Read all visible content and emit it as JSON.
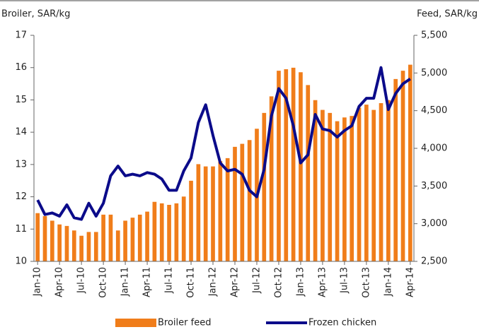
{
  "chart_data": {
    "type": "bar-line",
    "y_label": "Broiler, SAR/kg",
    "y2_label": "Feed, SAR/kg",
    "categories": [
      "Jan-10",
      null,
      null,
      "Apr-10",
      null,
      null,
      "Jul-10",
      null,
      null,
      "Oct-10",
      null,
      null,
      "Jan-11",
      null,
      null,
      "Apr-11",
      null,
      null,
      "Jul-11",
      null,
      null,
      "Oct-11",
      null,
      null,
      "Jan-12",
      null,
      null,
      "Apr-12",
      null,
      null,
      "Jul-12",
      null,
      null,
      "Oct-12",
      null,
      null,
      "Jan-13",
      null,
      null,
      "Apr-13",
      null,
      null,
      "Jul-13",
      null,
      null,
      "Oct-13",
      null,
      null,
      "Jan-14",
      null,
      null,
      "Apr-14"
    ],
    "series": [
      {
        "name": "Broiler feed",
        "type": "bar",
        "axis": "y2",
        "color": "#f07d1a",
        "values": [
          3140,
          3100,
          3040,
          2990,
          2970,
          2910,
          2840,
          2890,
          2890,
          3120,
          3120,
          2910,
          3040,
          3080,
          3120,
          3160,
          3290,
          3270,
          3250,
          3270,
          3360,
          3570,
          3790,
          3760,
          3760,
          3830,
          3870,
          4020,
          4060,
          4110,
          4260,
          4470,
          4690,
          5030,
          5050,
          5070,
          5010,
          4840,
          4640,
          4510,
          4470,
          4360,
          4410,
          4430,
          4540,
          4580,
          4510,
          4600,
          4640,
          4920,
          5030,
          5110
        ]
      },
      {
        "name": "Frozen chicken",
        "type": "line",
        "axis": "y",
        "color": "#0b0b8a",
        "values": [
          11.9,
          11.45,
          11.5,
          11.4,
          11.75,
          11.35,
          11.3,
          11.8,
          11.4,
          11.8,
          12.65,
          12.95,
          12.65,
          12.7,
          12.65,
          12.75,
          12.7,
          12.55,
          12.2,
          12.2,
          12.8,
          13.2,
          14.3,
          14.85,
          13.9,
          13.05,
          12.8,
          12.85,
          12.7,
          12.2,
          12.0,
          12.85,
          14.5,
          15.35,
          15.05,
          14.2,
          13.05,
          13.3,
          14.55,
          14.1,
          14.05,
          13.85,
          14.05,
          14.2,
          14.8,
          15.05,
          15.05,
          16.0,
          14.7,
          15.2,
          15.5,
          15.65
        ]
      }
    ],
    "ylim": [
      10,
      17
    ],
    "yticks": [
      10,
      11,
      12,
      13,
      14,
      15,
      16,
      17
    ],
    "y2lim": [
      2500,
      5500
    ],
    "y2ticks": [
      {
        "value": 2500,
        "label": "2,500"
      },
      {
        "value": 3000,
        "label": "3,000"
      },
      {
        "value": 3500,
        "label": "3,500"
      },
      {
        "value": 4000,
        "label": "4,000"
      },
      {
        "value": 4500,
        "label": "4,500"
      },
      {
        "value": 5000,
        "label": "5,000"
      },
      {
        "value": 5500,
        "label": "5,500"
      }
    ],
    "legend": "bottom"
  }
}
